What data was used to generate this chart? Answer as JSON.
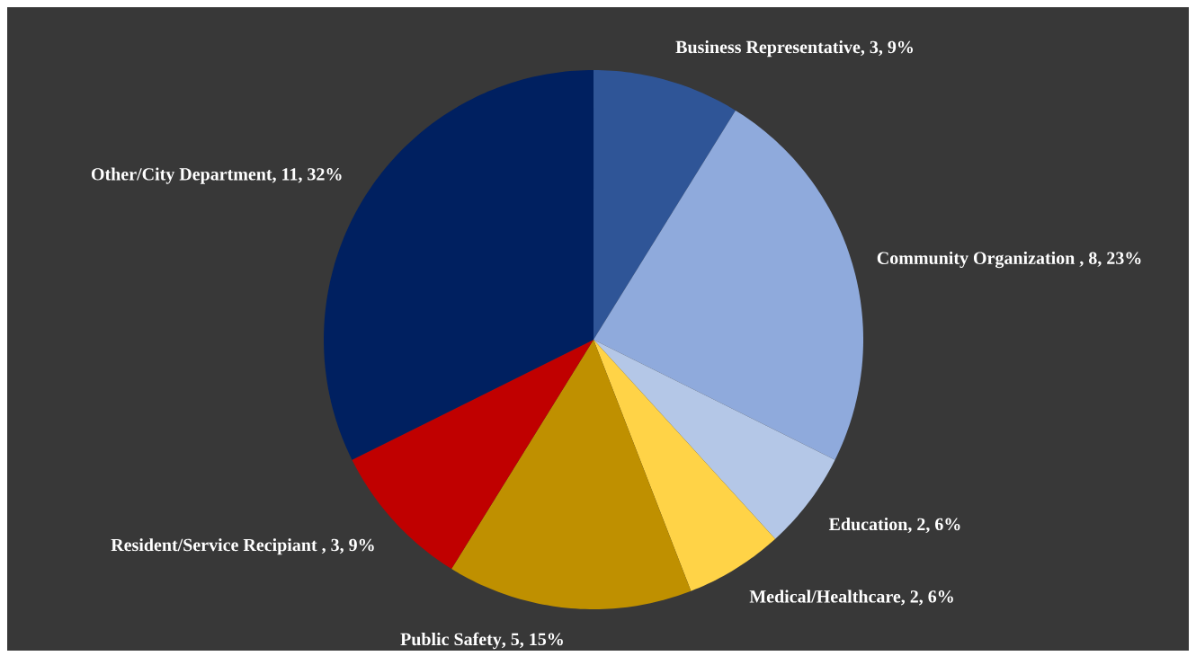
{
  "chart_data": {
    "type": "pie",
    "categories": [
      "Business Representative",
      "Community Organization ",
      "Education",
      "Medical/Healthcare",
      "Public Safety",
      "Resident/Service Recipiant ",
      "Other/City Department"
    ],
    "values": [
      3,
      8,
      2,
      2,
      5,
      3,
      11
    ],
    "value_labels": [
      ", 3, 9%",
      ", 8, 23%",
      ", 2, 6%",
      ", 2, 6%",
      ", 5, 15%",
      ", 3, 9%",
      ", 11, 32%"
    ],
    "colors": [
      "#2f5597",
      "#8faadc",
      "#b4c7e7",
      "#ffd347",
      "#bf9000",
      "#c00000",
      "#002060"
    ],
    "legend": false
  }
}
